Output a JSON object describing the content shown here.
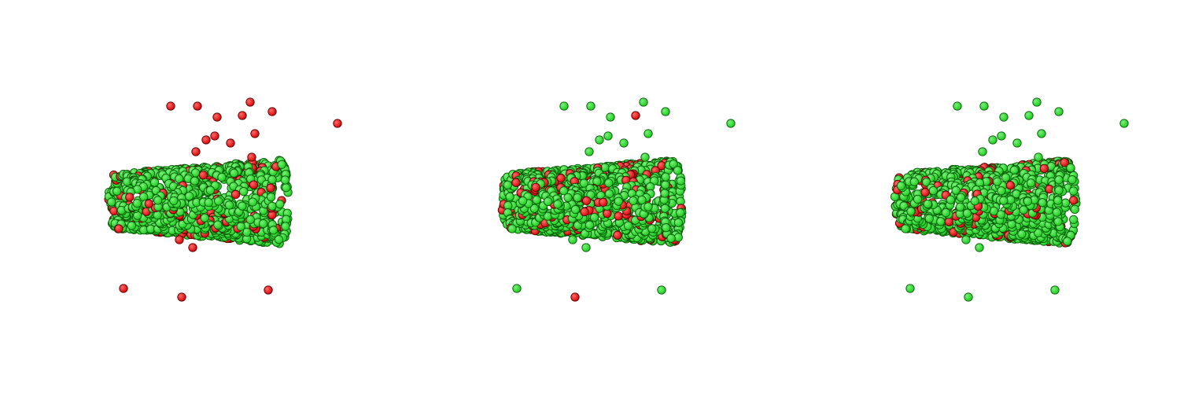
{
  "figure": {
    "panel_count": 3,
    "colors": {
      "background": "#ffffff",
      "green_fill": "#15cc15",
      "green_highlight": "#7cf07c",
      "green_outline": "#0a5a0a",
      "red_fill": "#d40000",
      "red_highlight": "#ff6a6a",
      "red_outline": "#5a0000"
    }
  },
  "panels": [
    {
      "name": "left-panel",
      "red_fraction_on_surface": 0.15,
      "outliers_red": 1.0
    },
    {
      "name": "middle-panel",
      "red_fraction_on_surface": 0.18,
      "outliers_red": 0.15
    },
    {
      "name": "right-panel",
      "red_fraction_on_surface": 0.12,
      "outliers_red": 0.0
    }
  ]
}
